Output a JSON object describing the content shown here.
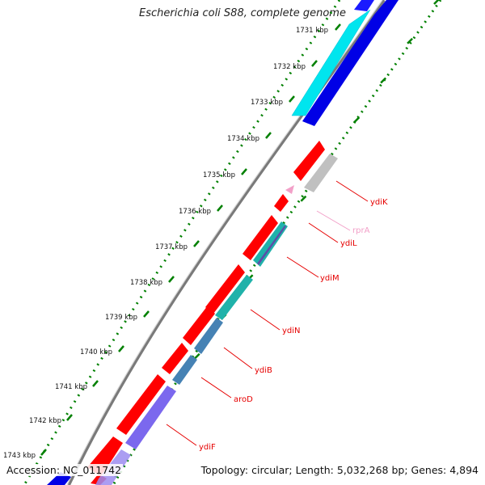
{
  "title": "Escherichia coli S88, complete genome",
  "accession": "Accession: NC_011742",
  "topology": "Topology: circular; Length: 5,032,268 bp; Genes: 4,894",
  "ticks": [
    "1731 kbp",
    "1732 kbp",
    "1733 kbp",
    "1734 kbp",
    "1735 kbp",
    "1736 kbp",
    "1737 kbp",
    "1738 kbp",
    "1739 kbp",
    "1740 kbp",
    "1741 kbp",
    "1742 kbp",
    "1743 kbp"
  ],
  "genes": [
    {
      "name": "ydiK",
      "color": "#e60000"
    },
    {
      "name": "rprA",
      "color": "#f2a0c8"
    },
    {
      "name": "ydiL",
      "color": "#e60000"
    },
    {
      "name": "ydiM",
      "color": "#e60000"
    },
    {
      "name": "ydiN",
      "color": "#e60000"
    },
    {
      "name": "ydiB",
      "color": "#e60000"
    },
    {
      "name": "aroD",
      "color": "#e60000"
    },
    {
      "name": "ydiF",
      "color": "#e60000"
    }
  ],
  "colors": {
    "cds": "#ff0000",
    "label": "#d40000",
    "cyan": "#00e5ee",
    "blue": "#0000e6",
    "grey": "#c8c8c8",
    "steel": "#4682b4",
    "slate": "#7b68ee",
    "teal": "#20b2aa",
    "tick_green": "#008000"
  }
}
